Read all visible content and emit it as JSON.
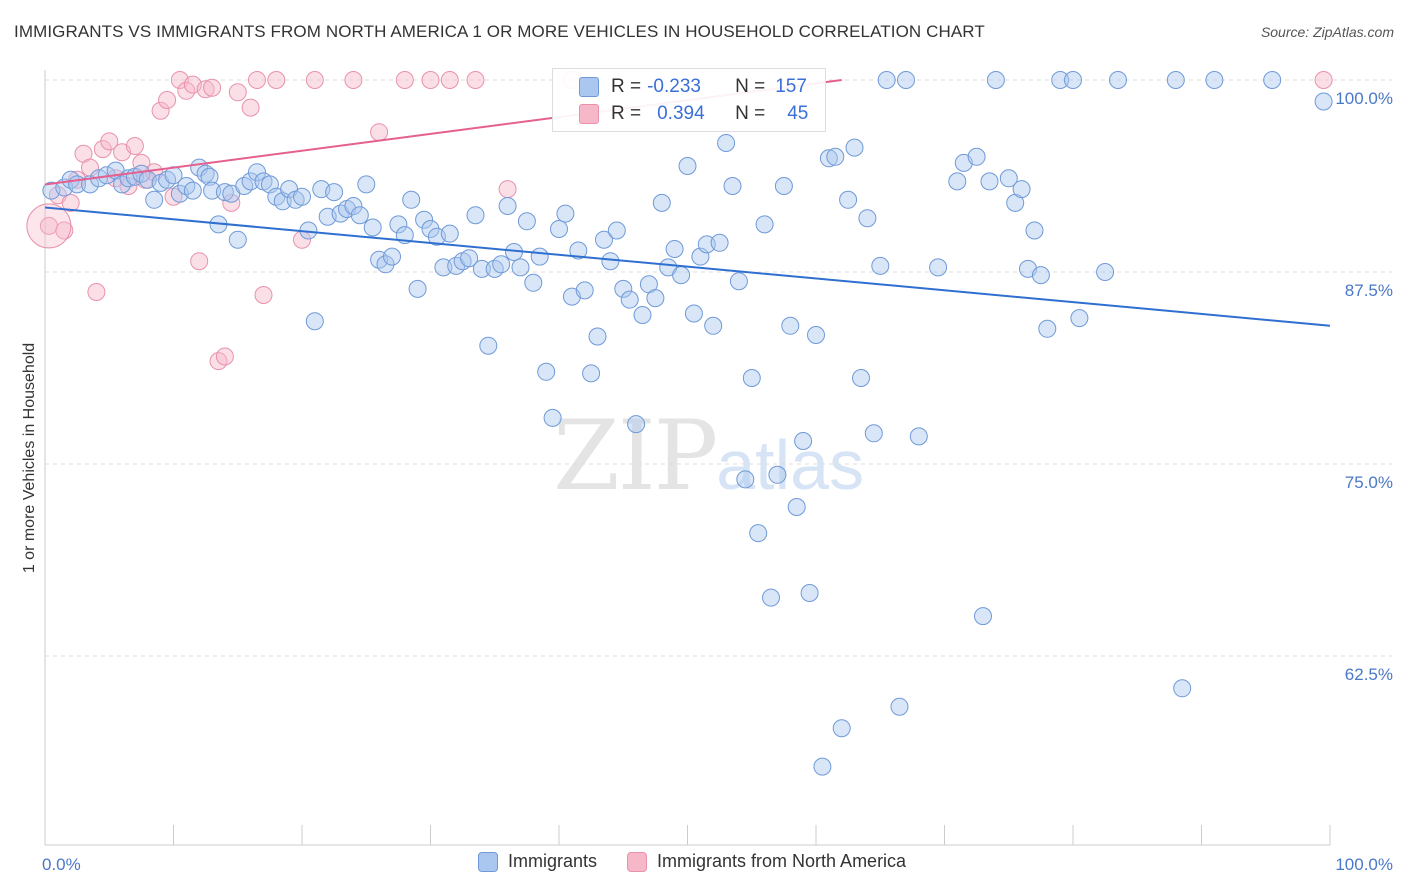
{
  "title": "IMMIGRANTS VS IMMIGRANTS FROM NORTH AMERICA 1 OR MORE VEHICLES IN HOUSEHOLD CORRELATION CHART",
  "source": "Source: ZipAtlas.com",
  "watermark": {
    "zip": "ZIP",
    "atlas": "atlas"
  },
  "stats": {
    "r_label": "R =",
    "n_label": "N =",
    "rows": [
      {
        "r": "-0.233",
        "n": "157"
      },
      {
        "r": "0.394",
        "n": "45"
      }
    ]
  },
  "legend": {
    "immigrants": "Immigrants",
    "north_america": "Immigrants from North America"
  },
  "colors": {
    "blue_fill": "#aac8ef",
    "blue_stroke": "#6f9ad8",
    "blue_line": "#2f6fd0",
    "pink_fill": "#f6b8c9",
    "pink_stroke": "#e892ad",
    "pink_line": "#e5608e",
    "tick_text": "#4a78c8",
    "grid": "#dddddd"
  },
  "chart_data": {
    "type": "scatter",
    "title": "IMMIGRANTS VS IMMIGRANTS FROM NORTH AMERICA 1 OR MORE VEHICLES IN HOUSEHOLD CORRELATION CHART",
    "xlabel": "",
    "ylabel": "1 or more Vehicles in Household",
    "xlim": [
      0,
      100
    ],
    "ylim": [
      50,
      102.5
    ],
    "x_tick_labels": [
      "0.0%",
      "100.0%"
    ],
    "y_ticks": [
      62.5,
      75.0,
      87.5,
      100.0
    ],
    "y_tick_labels": [
      "62.5%",
      "75.0%",
      "87.5%",
      "100.0%"
    ],
    "grid": true,
    "legend_position": "bottom-center",
    "series": [
      {
        "name": "Immigrants",
        "r": -0.233,
        "n": 157,
        "trend": {
          "x": [
            0,
            100
          ],
          "y": [
            91.7,
            84.0
          ]
        },
        "points": [
          [
            0.5,
            92.8
          ],
          [
            1.5,
            93.0
          ],
          [
            2.0,
            93.5
          ],
          [
            2.5,
            93.2
          ],
          [
            3.5,
            93.2
          ],
          [
            4.2,
            93.6
          ],
          [
            4.8,
            93.8
          ],
          [
            5.5,
            94.1
          ],
          [
            6.0,
            93.2
          ],
          [
            6.5,
            93.6
          ],
          [
            7.0,
            93.7
          ],
          [
            7.5,
            93.9
          ],
          [
            8.0,
            93.5
          ],
          [
            8.5,
            92.2
          ],
          [
            9.0,
            93.3
          ],
          [
            9.5,
            93.5
          ],
          [
            10.0,
            93.8
          ],
          [
            10.5,
            92.6
          ],
          [
            11.0,
            93.1
          ],
          [
            11.5,
            92.8
          ],
          [
            12.0,
            94.3
          ],
          [
            12.5,
            93.9
          ],
          [
            12.8,
            93.7
          ],
          [
            13.0,
            92.8
          ],
          [
            13.5,
            90.6
          ],
          [
            14.0,
            92.7
          ],
          [
            14.5,
            92.6
          ],
          [
            15.0,
            89.6
          ],
          [
            15.5,
            93.1
          ],
          [
            16.0,
            93.4
          ],
          [
            16.5,
            94.0
          ],
          [
            17.0,
            93.4
          ],
          [
            17.5,
            93.2
          ],
          [
            18.0,
            92.4
          ],
          [
            18.5,
            92.1
          ],
          [
            19.0,
            92.9
          ],
          [
            19.5,
            92.2
          ],
          [
            20.0,
            92.4
          ],
          [
            20.5,
            90.2
          ],
          [
            21.0,
            84.3
          ],
          [
            21.5,
            92.9
          ],
          [
            22.0,
            91.1
          ],
          [
            22.5,
            92.7
          ],
          [
            23.0,
            91.3
          ],
          [
            23.5,
            91.6
          ],
          [
            24.0,
            91.8
          ],
          [
            24.5,
            91.2
          ],
          [
            25.0,
            93.2
          ],
          [
            25.5,
            90.4
          ],
          [
            26.0,
            88.3
          ],
          [
            26.5,
            88.0
          ],
          [
            27.0,
            88.5
          ],
          [
            27.5,
            90.6
          ],
          [
            28.0,
            89.9
          ],
          [
            28.5,
            92.2
          ],
          [
            29.0,
            86.4
          ],
          [
            29.5,
            90.9
          ],
          [
            30.0,
            90.3
          ],
          [
            30.5,
            89.8
          ],
          [
            31.0,
            87.8
          ],
          [
            31.5,
            90.0
          ],
          [
            32.0,
            87.9
          ],
          [
            32.5,
            88.2
          ],
          [
            33.0,
            88.4
          ],
          [
            33.5,
            91.2
          ],
          [
            34.0,
            87.7
          ],
          [
            34.5,
            82.7
          ],
          [
            35.0,
            87.7
          ],
          [
            35.5,
            88.0
          ],
          [
            36.0,
            91.8
          ],
          [
            36.5,
            88.8
          ],
          [
            37.0,
            87.8
          ],
          [
            37.5,
            90.8
          ],
          [
            38.0,
            86.8
          ],
          [
            38.5,
            88.5
          ],
          [
            39.0,
            81.0
          ],
          [
            39.5,
            78.0
          ],
          [
            40.0,
            90.3
          ],
          [
            40.5,
            91.3
          ],
          [
            41.0,
            85.9
          ],
          [
            41.5,
            88.9
          ],
          [
            42.0,
            86.3
          ],
          [
            42.5,
            80.9
          ],
          [
            43.0,
            83.3
          ],
          [
            43.5,
            89.6
          ],
          [
            44.0,
            88.2
          ],
          [
            44.5,
            90.2
          ],
          [
            45.0,
            86.4
          ],
          [
            45.5,
            85.7
          ],
          [
            46.0,
            77.6
          ],
          [
            46.5,
            84.7
          ],
          [
            47.0,
            86.7
          ],
          [
            47.5,
            85.8
          ],
          [
            48.0,
            92.0
          ],
          [
            48.5,
            87.8
          ],
          [
            49.0,
            89.0
          ],
          [
            49.5,
            87.3
          ],
          [
            50.0,
            94.4
          ],
          [
            50.5,
            84.8
          ],
          [
            51.0,
            88.5
          ],
          [
            51.5,
            89.3
          ],
          [
            52.0,
            84.0
          ],
          [
            52.5,
            89.4
          ],
          [
            53.0,
            95.9
          ],
          [
            53.5,
            93.1
          ],
          [
            54.0,
            86.9
          ],
          [
            54.5,
            74.0
          ],
          [
            55.0,
            80.6
          ],
          [
            55.5,
            70.5
          ],
          [
            56.0,
            90.6
          ],
          [
            56.5,
            66.3
          ],
          [
            57.0,
            74.3
          ],
          [
            57.5,
            93.1
          ],
          [
            58.0,
            84.0
          ],
          [
            58.5,
            72.2
          ],
          [
            59.0,
            76.5
          ],
          [
            59.5,
            66.6
          ],
          [
            60.0,
            83.4
          ],
          [
            60.5,
            55.3
          ],
          [
            61.0,
            94.9
          ],
          [
            61.5,
            95.0
          ],
          [
            62.0,
            57.8
          ],
          [
            62.5,
            92.2
          ],
          [
            63.0,
            95.6
          ],
          [
            63.5,
            80.6
          ],
          [
            64.0,
            91.0
          ],
          [
            64.5,
            77.0
          ],
          [
            65.0,
            87.9
          ],
          [
            65.5,
            100.0
          ],
          [
            66.5,
            59.2
          ],
          [
            67.0,
            100.0
          ],
          [
            68.0,
            76.8
          ],
          [
            69.5,
            87.8
          ],
          [
            71.0,
            93.4
          ],
          [
            71.5,
            94.6
          ],
          [
            72.5,
            95.0
          ],
          [
            73.0,
            65.1
          ],
          [
            73.5,
            93.4
          ],
          [
            74.0,
            100.0
          ],
          [
            75.0,
            93.6
          ],
          [
            75.5,
            92.0
          ],
          [
            76.0,
            92.9
          ],
          [
            76.5,
            87.7
          ],
          [
            77.0,
            90.2
          ],
          [
            77.5,
            87.3
          ],
          [
            78.0,
            83.8
          ],
          [
            79.0,
            100.0
          ],
          [
            80.0,
            100.0
          ],
          [
            80.5,
            84.5
          ],
          [
            82.5,
            87.5
          ],
          [
            83.5,
            100.0
          ],
          [
            88.0,
            100.0
          ],
          [
            88.5,
            60.4
          ],
          [
            91.0,
            100.0
          ],
          [
            95.5,
            100.0
          ],
          [
            99.5,
            98.6
          ]
        ]
      },
      {
        "name": "Immigrants from North America",
        "r": 0.394,
        "n": 45,
        "trend": {
          "x": [
            0,
            62
          ],
          "y": [
            93.2,
            100.0
          ]
        },
        "points": [
          [
            0.3,
            90.5
          ],
          [
            1.0,
            92.5
          ],
          [
            1.5,
            90.2
          ],
          [
            2.0,
            92.0
          ],
          [
            2.5,
            93.5
          ],
          [
            3.0,
            95.2
          ],
          [
            3.5,
            94.3
          ],
          [
            4.0,
            86.2
          ],
          [
            4.5,
            95.5
          ],
          [
            5.0,
            96.0
          ],
          [
            5.5,
            93.6
          ],
          [
            6.0,
            95.3
          ],
          [
            6.5,
            93.1
          ],
          [
            7.0,
            95.7
          ],
          [
            7.5,
            94.6
          ],
          [
            7.8,
            93.5
          ],
          [
            8.5,
            94.0
          ],
          [
            9.0,
            98.0
          ],
          [
            9.5,
            98.7
          ],
          [
            10.0,
            92.4
          ],
          [
            10.5,
            100.0
          ],
          [
            11.0,
            99.3
          ],
          [
            11.5,
            99.7
          ],
          [
            12.0,
            88.2
          ],
          [
            12.5,
            99.4
          ],
          [
            13.0,
            99.5
          ],
          [
            13.5,
            81.7
          ],
          [
            14.0,
            82.0
          ],
          [
            14.5,
            92.0
          ],
          [
            15.0,
            99.2
          ],
          [
            16.0,
            98.2
          ],
          [
            16.5,
            100.0
          ],
          [
            17.0,
            86.0
          ],
          [
            18.0,
            100.0
          ],
          [
            20.0,
            89.6
          ],
          [
            21.0,
            100.0
          ],
          [
            24.0,
            100.0
          ],
          [
            26.0,
            96.6
          ],
          [
            28.0,
            100.0
          ],
          [
            30.0,
            100.0
          ],
          [
            31.5,
            100.0
          ],
          [
            33.5,
            100.0
          ],
          [
            36.0,
            92.9
          ],
          [
            41.0,
            100.0
          ],
          [
            99.5,
            100.0
          ]
        ]
      }
    ]
  }
}
